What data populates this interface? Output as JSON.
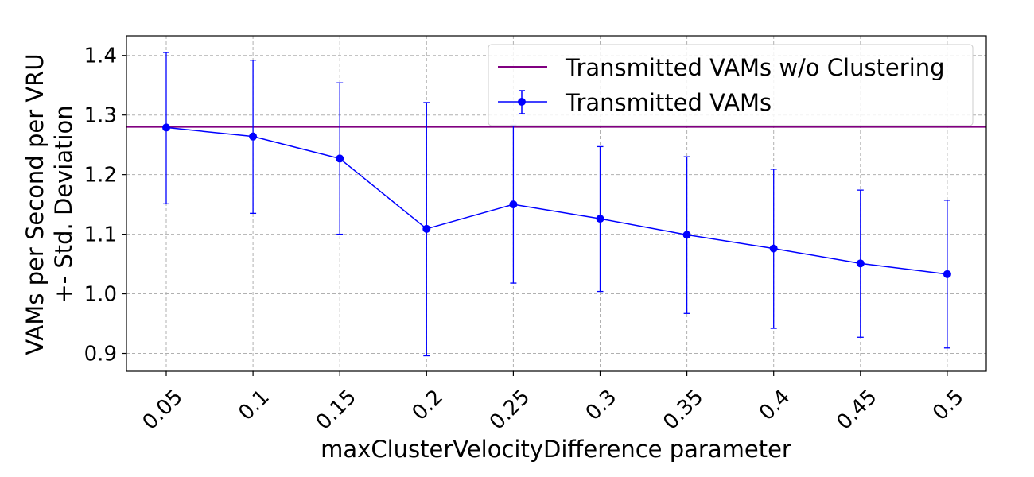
{
  "chart_data": {
    "type": "line",
    "title": "",
    "xlabel": "maxClusterVelocityDifference parameter",
    "ylabel_line1": "VAMs per Second per VRU",
    "ylabel_line2": "+- Std. Deviation",
    "categories": [
      "0.05",
      "0.1",
      "0.15",
      "0.2",
      "0.25",
      "0.3",
      "0.35",
      "0.4",
      "0.45",
      "0.5"
    ],
    "ylim": [
      0.87,
      1.433
    ],
    "yticks": [
      0.9,
      1.0,
      1.1,
      1.2,
      1.3,
      1.4
    ],
    "ytick_labels": [
      "0.9",
      "1.0",
      "1.1",
      "1.2",
      "1.3",
      "1.4"
    ],
    "grid": true,
    "legend_position": "top-right",
    "series": [
      {
        "name": "Transmitted VAMs",
        "color": "#0000ff",
        "values": [
          1.279,
          1.264,
          1.227,
          1.109,
          1.15,
          1.126,
          1.099,
          1.076,
          1.051,
          1.033
        ],
        "err_lower": [
          1.151,
          1.135,
          1.1,
          0.896,
          1.018,
          1.004,
          0.967,
          0.942,
          0.927,
          0.909
        ],
        "err_upper": [
          1.405,
          1.392,
          1.354,
          1.321,
          1.283,
          1.247,
          1.23,
          1.209,
          1.174,
          1.157
        ]
      }
    ],
    "reference_line": {
      "name": "Transmitted VAMs w/o Clustering",
      "color": "#800080",
      "value": 1.28
    }
  }
}
